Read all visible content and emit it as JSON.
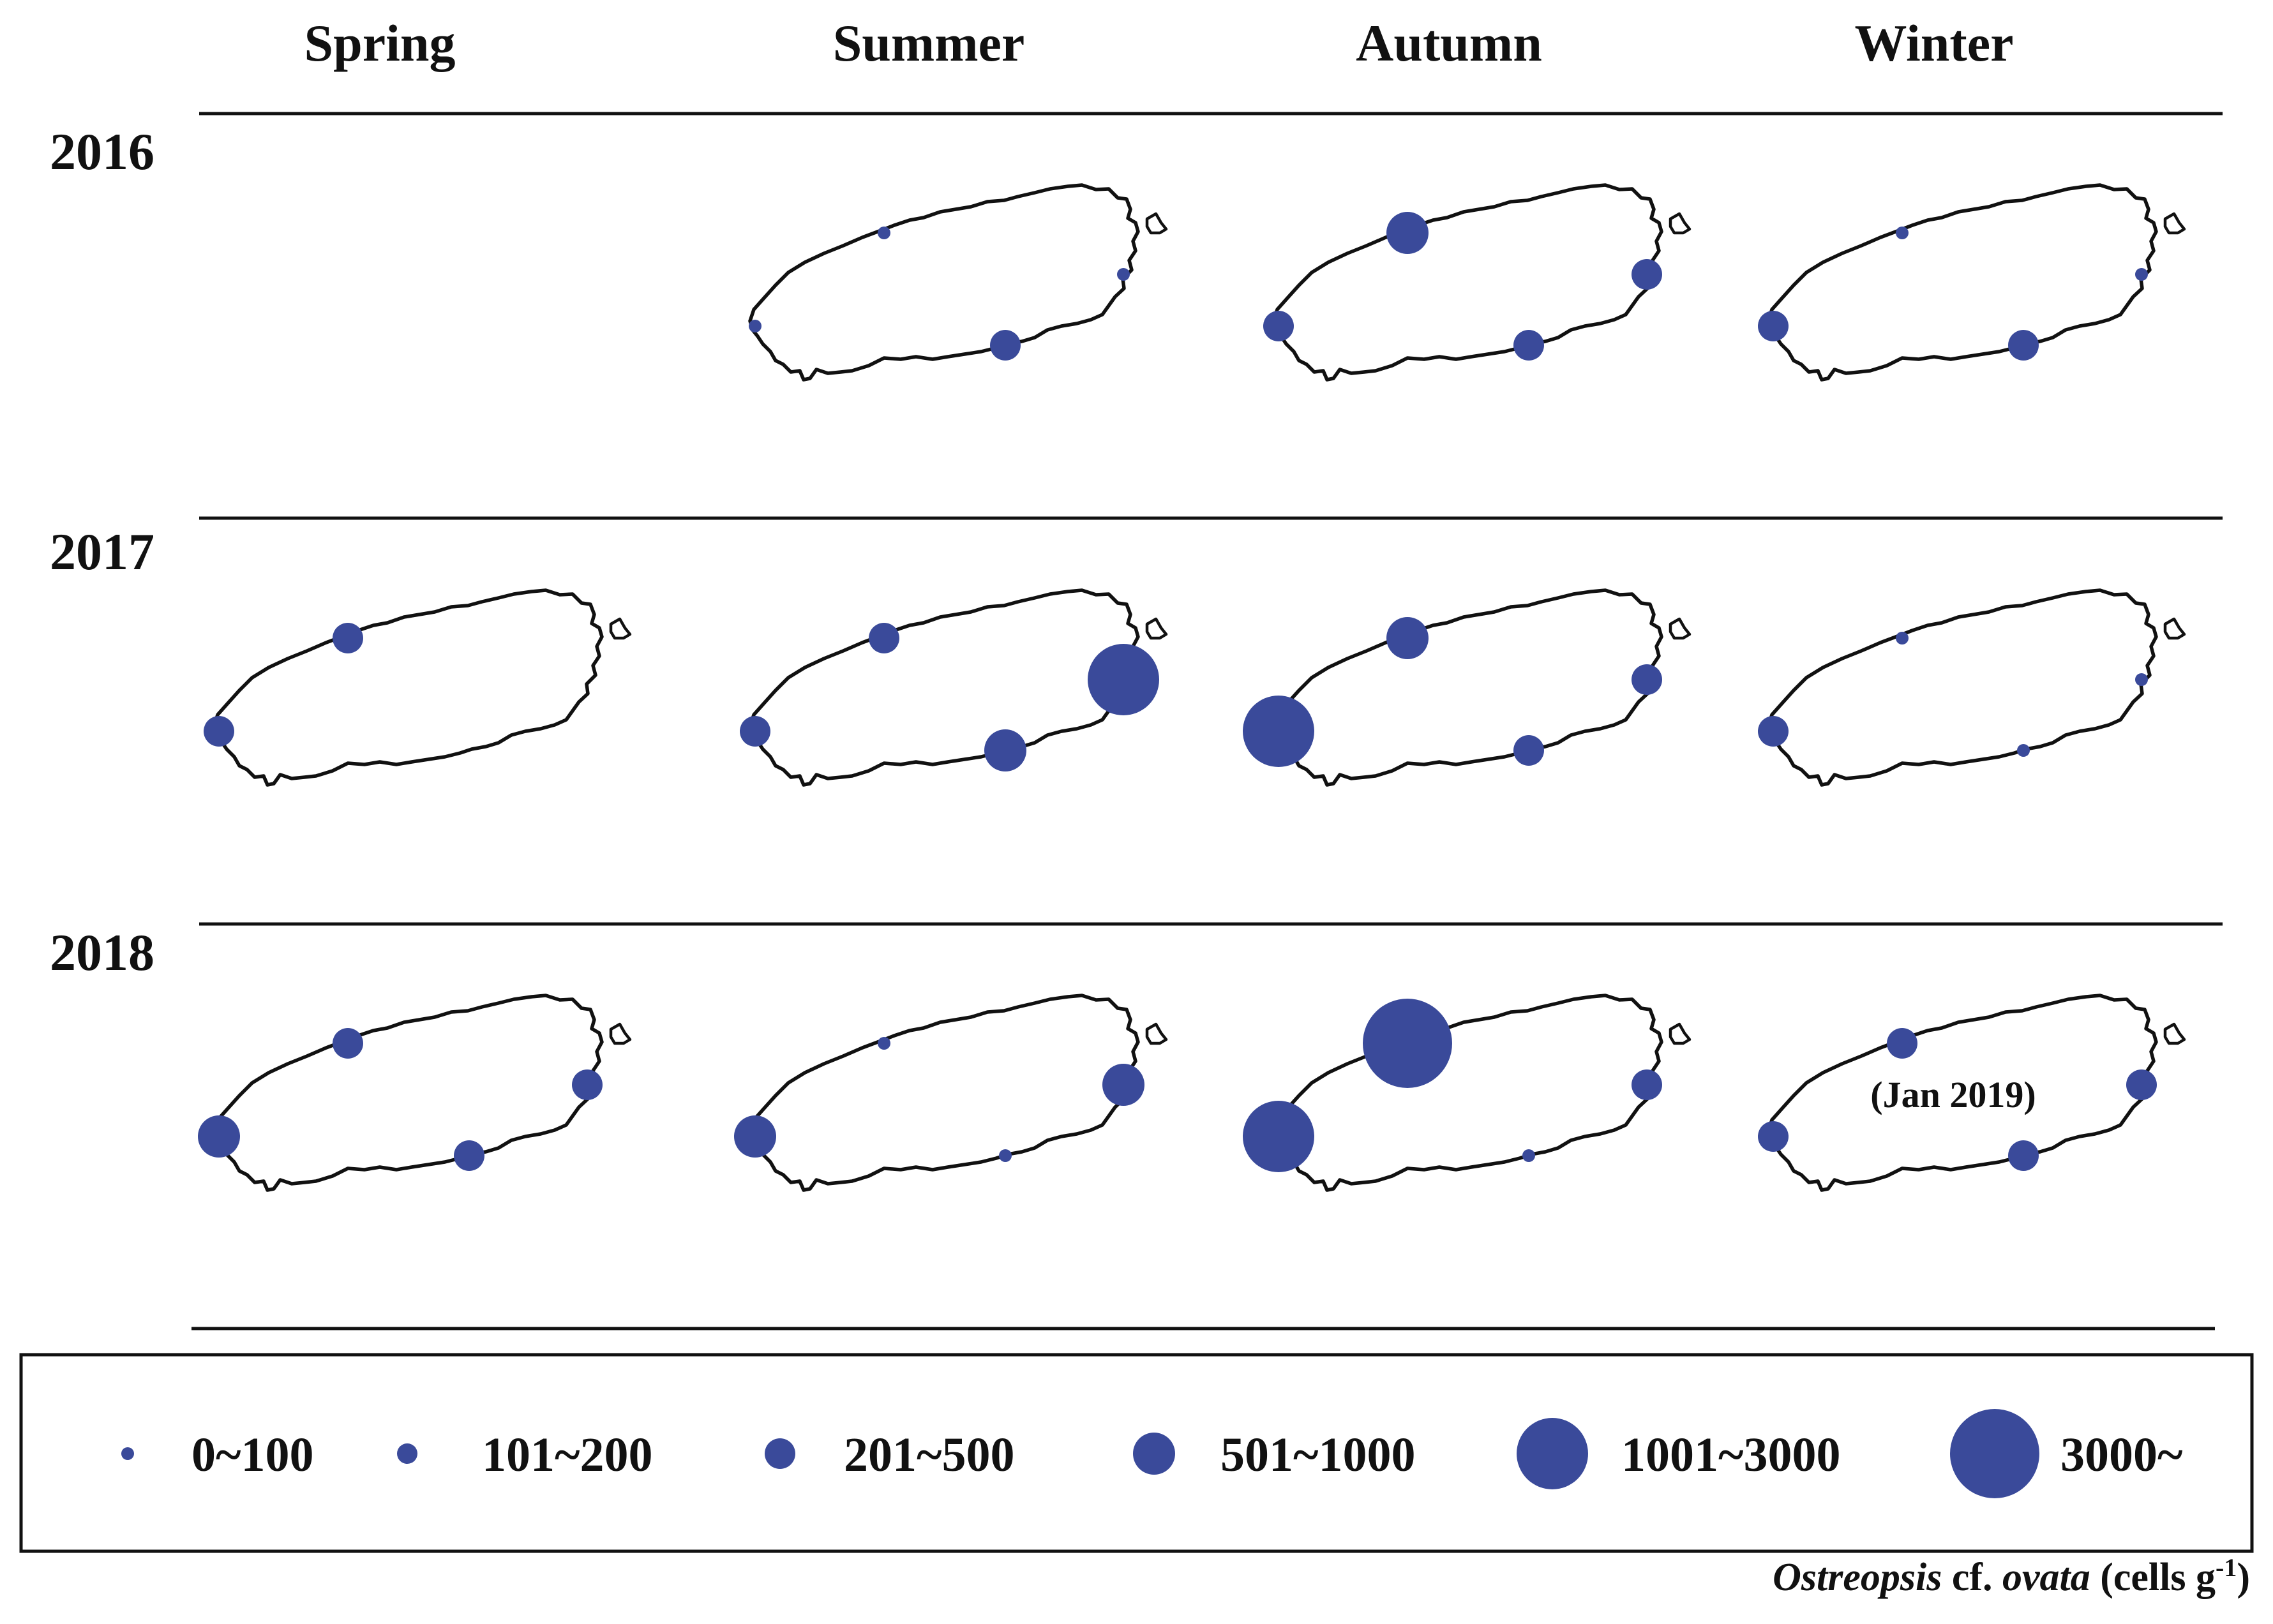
{
  "seasons": [
    "Spring",
    "Summer",
    "Autumn",
    "Winter"
  ],
  "years": [
    "2016",
    "2017",
    "2018"
  ],
  "colors": {
    "dot": "#3a4a9a",
    "line": "#111111",
    "background": "#ffffff"
  },
  "sampling_sites": [
    "north",
    "east",
    "west",
    "south"
  ],
  "abundance_classes": [
    {
      "label": "0~100"
    },
    {
      "label": "101~200"
    },
    {
      "label": "201~500"
    },
    {
      "label": "501~1000"
    },
    {
      "label": "1001~3000"
    },
    {
      "label": "3000~"
    }
  ],
  "panels": [
    {
      "year": "2016",
      "season": "Spring",
      "has_map": false,
      "sites": {}
    },
    {
      "year": "2016",
      "season": "Summer",
      "has_map": true,
      "sites": {
        "north": "0~100",
        "east": "0~100",
        "west": "0~100",
        "south": "201~500"
      }
    },
    {
      "year": "2016",
      "season": "Autumn",
      "has_map": true,
      "sites": {
        "north": "501~1000",
        "east": "201~500",
        "west": "201~500",
        "south": "201~500"
      }
    },
    {
      "year": "2016",
      "season": "Winter",
      "has_map": true,
      "sites": {
        "north": "0~100",
        "east": "0~100",
        "west": "201~500",
        "south": "201~500"
      }
    },
    {
      "year": "2017",
      "season": "Spring",
      "has_map": true,
      "sites": {
        "north": "201~500",
        "west": "201~500"
      }
    },
    {
      "year": "2017",
      "season": "Summer",
      "has_map": true,
      "sites": {
        "north": "201~500",
        "east": "1001~3000",
        "west": "201~500",
        "south": "501~1000"
      }
    },
    {
      "year": "2017",
      "season": "Autumn",
      "has_map": true,
      "sites": {
        "north": "501~1000",
        "east": "201~500",
        "west": "1001~3000",
        "south": "201~500"
      }
    },
    {
      "year": "2017",
      "season": "Winter",
      "has_map": true,
      "sites": {
        "north": "0~100",
        "east": "0~100",
        "west": "201~500",
        "south": "0~100"
      }
    },
    {
      "year": "2018",
      "season": "Spring",
      "has_map": true,
      "sites": {
        "north": "201~500",
        "east": "201~500",
        "west": "501~1000",
        "south": "201~500"
      }
    },
    {
      "year": "2018",
      "season": "Summer",
      "has_map": true,
      "sites": {
        "north": "0~100",
        "east": "501~1000",
        "west": "501~1000",
        "south": "0~100"
      }
    },
    {
      "year": "2018",
      "season": "Autumn",
      "has_map": true,
      "sites": {
        "north": "3000~",
        "east": "201~500",
        "west": "1001~3000",
        "south": "0~100"
      }
    },
    {
      "year": "2018",
      "season": "Winter",
      "has_map": true,
      "note": "(Jan 2019)",
      "sites": {
        "north": "201~500",
        "east": "201~500",
        "west": "201~500",
        "south": "201~500"
      }
    }
  ],
  "footer": {
    "genus": "Ostreopsis",
    "cf": " cf. ",
    "species": "ovata",
    "unit_open": " (cells g",
    "unit_exp": "-1",
    "unit_close": ")"
  }
}
